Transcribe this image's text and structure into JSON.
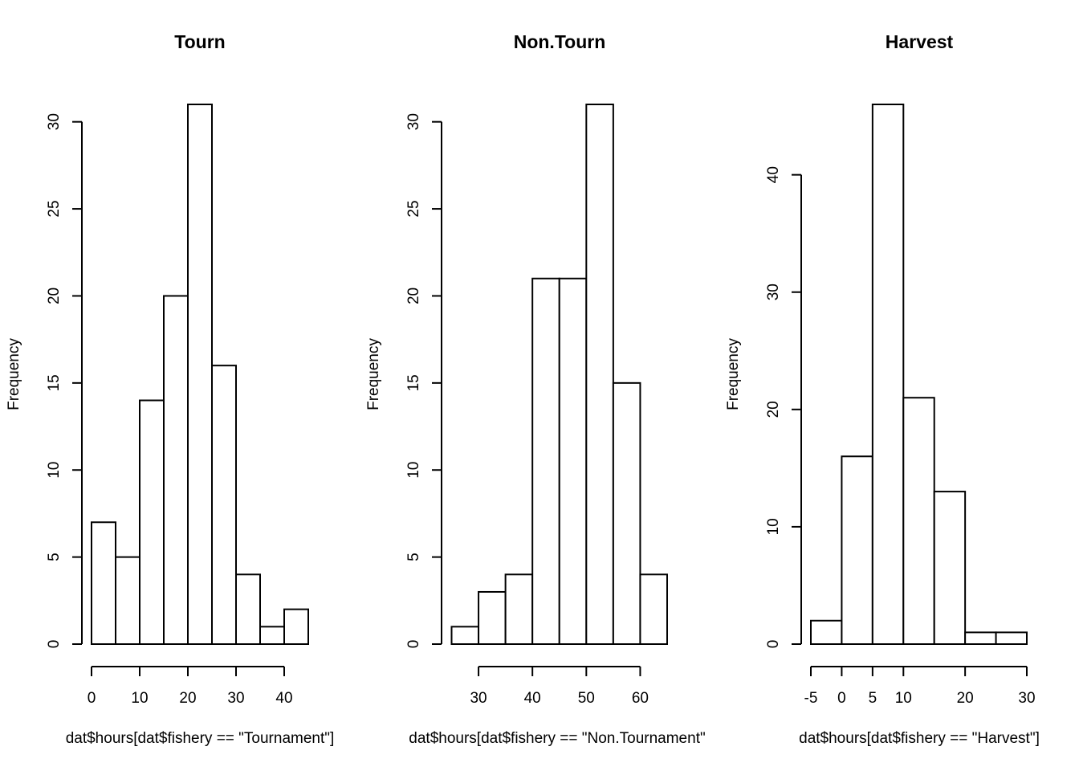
{
  "chart_data": [
    {
      "type": "histogram",
      "title": "Tourn",
      "xlabel": "dat$hours[dat$fishery == \"Tournament\"]",
      "ylabel": "Frequency",
      "bins": [
        0,
        5,
        10,
        15,
        20,
        25,
        30,
        35,
        40,
        45
      ],
      "counts": [
        7,
        5,
        14,
        20,
        31,
        16,
        4,
        1,
        2
      ],
      "xlim": [
        0,
        45
      ],
      "xticks": [
        0,
        10,
        20,
        30,
        40
      ],
      "ylim": [
        0,
        31
      ],
      "yticks": [
        0,
        5,
        10,
        15,
        20,
        25,
        30
      ],
      "color": "#ffffff"
    },
    {
      "type": "histogram",
      "title": "Non.Tourn",
      "xlabel": "dat$hours[dat$fishery == \"Non.Tournament\"",
      "ylabel": "Frequency",
      "bins": [
        25,
        30,
        35,
        40,
        45,
        50,
        55,
        60,
        65
      ],
      "counts": [
        1,
        3,
        4,
        21,
        21,
        31,
        15,
        4
      ],
      "xlim": [
        25,
        65
      ],
      "xticks": [
        30,
        40,
        50,
        60
      ],
      "ylim": [
        0,
        31
      ],
      "yticks": [
        0,
        5,
        10,
        15,
        20,
        25,
        30
      ],
      "color": "#ffffff"
    },
    {
      "type": "histogram",
      "title": "Harvest",
      "xlabel": "dat$hours[dat$fishery == \"Harvest\"]",
      "ylabel": "Frequency",
      "bins": [
        -5,
        0,
        5,
        10,
        15,
        20,
        25,
        30
      ],
      "counts": [
        2,
        16,
        46,
        21,
        13,
        1,
        1
      ],
      "xlim": [
        -5,
        30
      ],
      "xticks": [
        -5,
        0,
        5,
        10,
        20,
        30
      ],
      "ylim": [
        0,
        46
      ],
      "yticks": [
        0,
        10,
        20,
        30,
        40
      ],
      "color": "#ffffff"
    }
  ]
}
